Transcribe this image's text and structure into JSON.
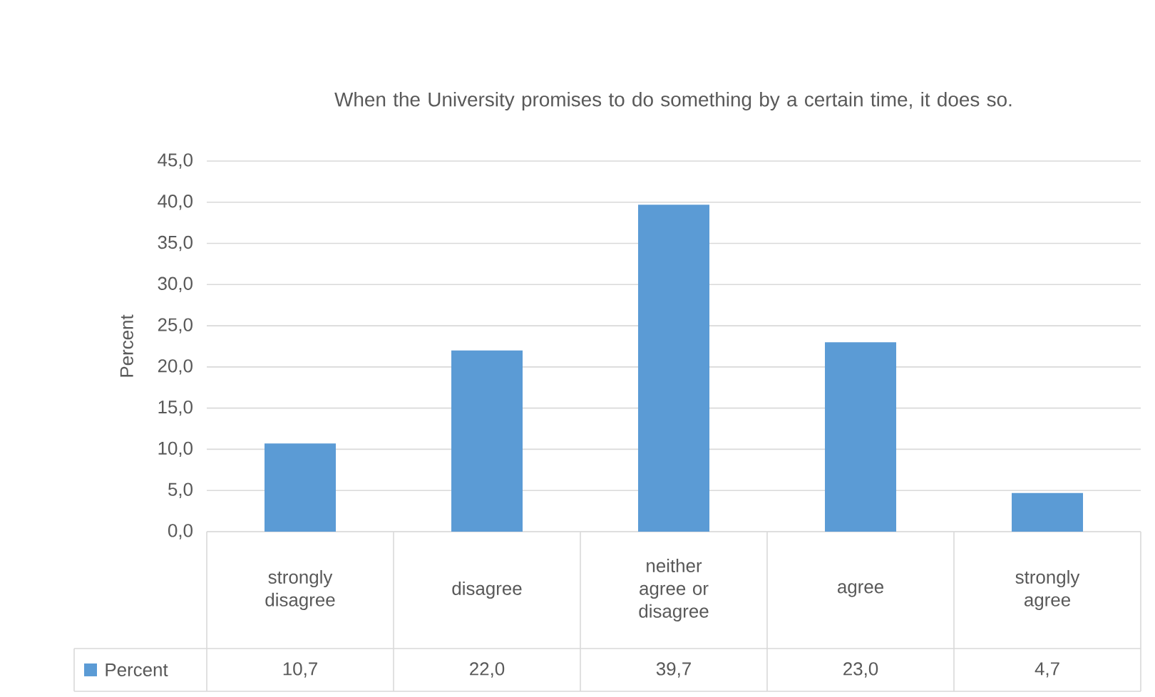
{
  "chart_data": {
    "type": "bar",
    "title": "When the University promises to do something by a certain time, it does so.",
    "ylabel": "Percent",
    "categories": [
      "strongly disagree",
      "disagree",
      "neither agree or disagree",
      "agree",
      "strongly agree"
    ],
    "series": [
      {
        "name": "Percent",
        "color": "#5b9bd5",
        "values": [
          10.7,
          22.0,
          39.7,
          23.0,
          4.7
        ],
        "value_labels": [
          "10,7",
          "22,0",
          "39,7",
          "23,0",
          "4,7"
        ]
      }
    ],
    "ylim": [
      0,
      45
    ],
    "yticks": [
      {
        "value": 0,
        "label": "0,0"
      },
      {
        "value": 5,
        "label": "5,0"
      },
      {
        "value": 10,
        "label": "10,0"
      },
      {
        "value": 15,
        "label": "15,0"
      },
      {
        "value": 20,
        "label": "20,0"
      },
      {
        "value": 25,
        "label": "25,0"
      },
      {
        "value": 30,
        "label": "30,0"
      },
      {
        "value": 35,
        "label": "35,0"
      },
      {
        "value": 40,
        "label": "40,0"
      },
      {
        "value": 45,
        "label": "45,0"
      }
    ],
    "grid": "y",
    "legend": "bottom"
  }
}
